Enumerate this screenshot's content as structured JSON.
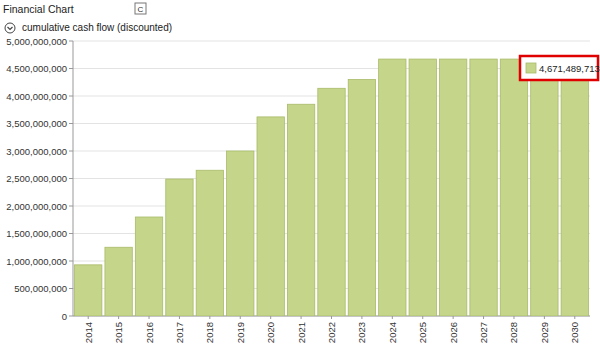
{
  "chart_data": {
    "type": "bar",
    "header": "Financial Chart",
    "header_button": "C",
    "title": "cumulative cash flow (discounted)",
    "categories": [
      "2014",
      "2015",
      "2016",
      "2017",
      "2018",
      "2019",
      "2020",
      "2021",
      "2022",
      "2023",
      "2024",
      "2025",
      "2026",
      "2027",
      "2028",
      "2029",
      "2030"
    ],
    "values": [
      930000000,
      1250000000,
      1800000000,
      2490000000,
      2650000000,
      3000000000,
      3620000000,
      3850000000,
      4140000000,
      4300000000,
      4671489713,
      4671489713,
      4671489713,
      4671489713,
      4671489713,
      4671489713,
      4671489713
    ],
    "color": "#c5d58a",
    "ylim": [
      0,
      5000000000
    ],
    "yticks": [
      0,
      {
        "value": 500000000,
        "label": "500,000,000"
      },
      {
        "value": 1000000000,
        "label": "1,000,000,000"
      },
      {
        "value": 1500000000,
        "label": "1,500,000,000"
      },
      {
        "value": 2000000000,
        "label": "2,000,000,000"
      },
      {
        "value": 2500000000,
        "label": "2,500,000,000"
      },
      {
        "value": 3000000000,
        "label": "3,000,000,000"
      },
      {
        "value": 3500000000,
        "label": "3,500,000,000"
      },
      {
        "value": 4000000000,
        "label": "4,000,000,000"
      },
      {
        "value": 4500000000,
        "label": "4,500,000,000"
      },
      {
        "value": 5000000000,
        "label": "5,000,000,000"
      }
    ],
    "grid": true,
    "annotations": [
      {
        "text": "4,671,489,713"
      }
    ]
  }
}
